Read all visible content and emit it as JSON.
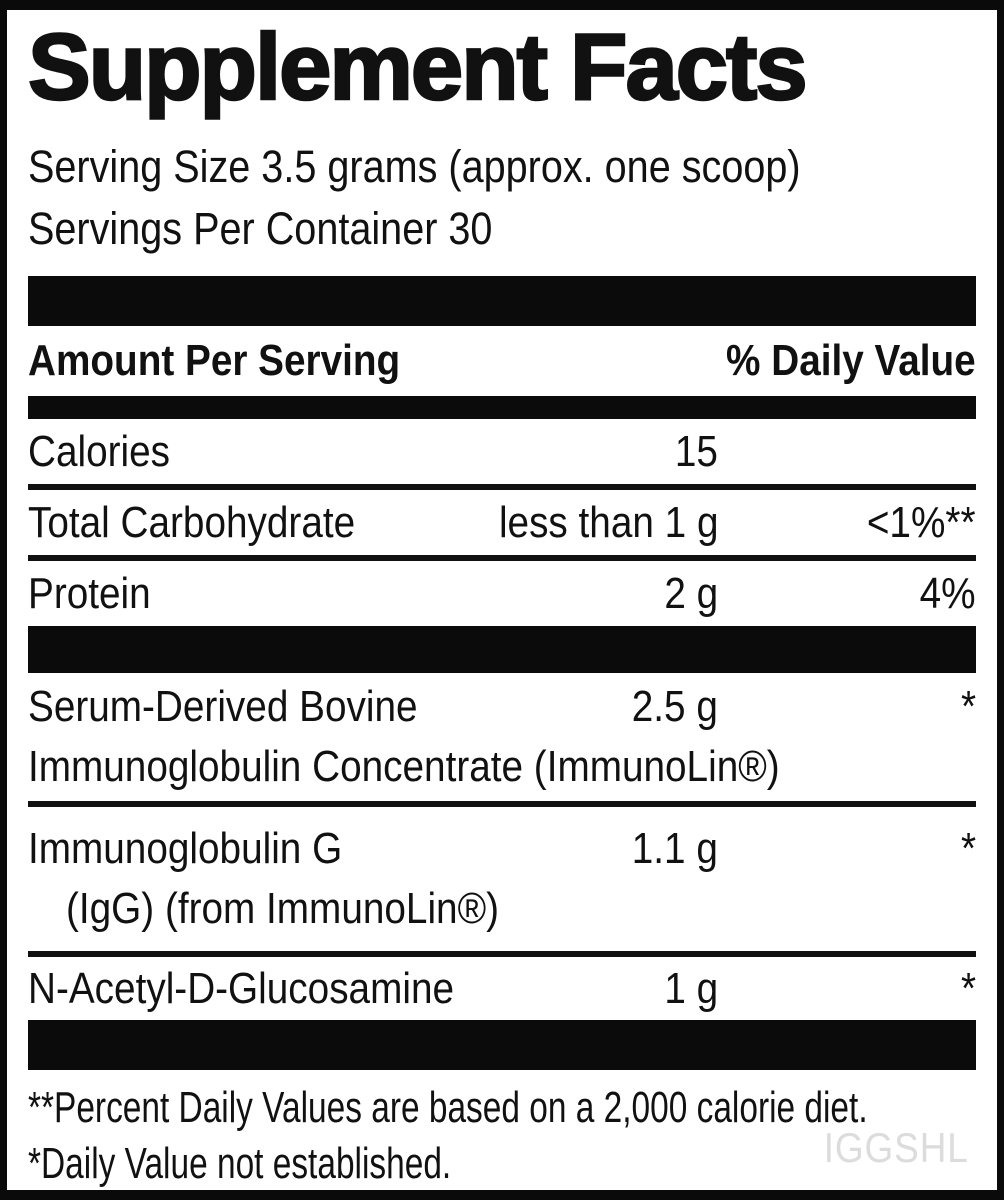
{
  "label": {
    "title": "Supplement Facts",
    "serving_size_line": "Serving Size 3.5 grams (approx. one scoop)",
    "servings_per_container_line": "Servings Per Container 30",
    "header": {
      "amount_per_serving": "Amount Per Serving",
      "percent_daily_value": "% Daily Value"
    },
    "nutrients": [
      {
        "name": "Calories",
        "amount": "15",
        "daily_value": ""
      },
      {
        "name": "Total Carbohydrate",
        "amount": "less than 1 g",
        "daily_value": "<1%**"
      },
      {
        "name": "Protein",
        "amount": "2 g",
        "daily_value": "4%"
      }
    ],
    "ingredients": [
      {
        "name_line1": "Serum-Derived Bovine",
        "name_line2": "Immunoglobulin Concentrate (ImmunoLin®)",
        "amount": "2.5 g",
        "daily_value": "*"
      },
      {
        "name_line1": "Immunoglobulin G",
        "name_line2": "(IgG) (from ImmunoLin®)",
        "amount": "1.1 g",
        "daily_value": "*"
      },
      {
        "name_line1": "N-Acetyl-D-Glucosamine",
        "amount": "1 g",
        "daily_value": "*"
      }
    ],
    "footnotes": [
      "**Percent Daily Values are based on a 2,000 calorie diet.",
      "*Daily Value not established."
    ],
    "watermark": "IGGSHL",
    "colors": {
      "text": "#111111",
      "bar": "#0b0b0b",
      "watermark": "#dcdcdc",
      "background": "#ffffff"
    }
  }
}
